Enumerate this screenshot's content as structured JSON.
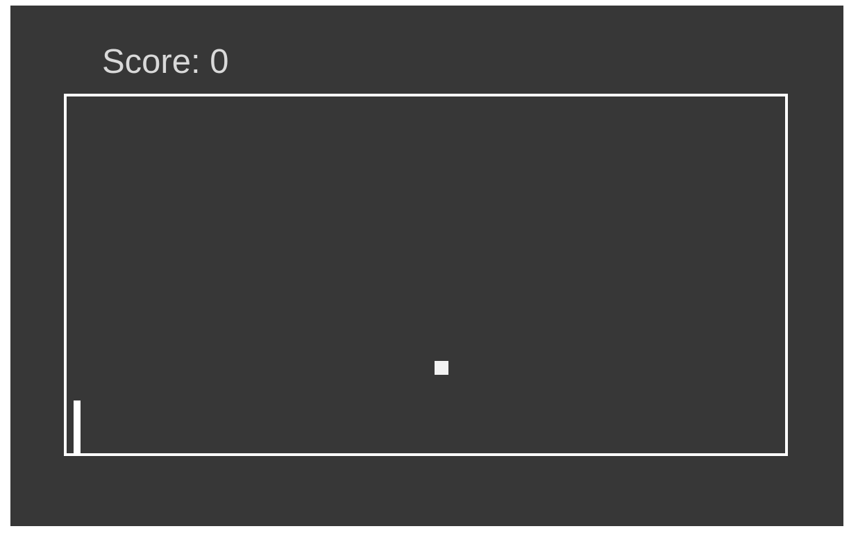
{
  "hud": {
    "score_text": "Score: 0"
  },
  "colors": {
    "background": "#373737",
    "walls": "#ffffff",
    "ball": "#f2f2f2",
    "score_text": "#d9d9d9"
  }
}
